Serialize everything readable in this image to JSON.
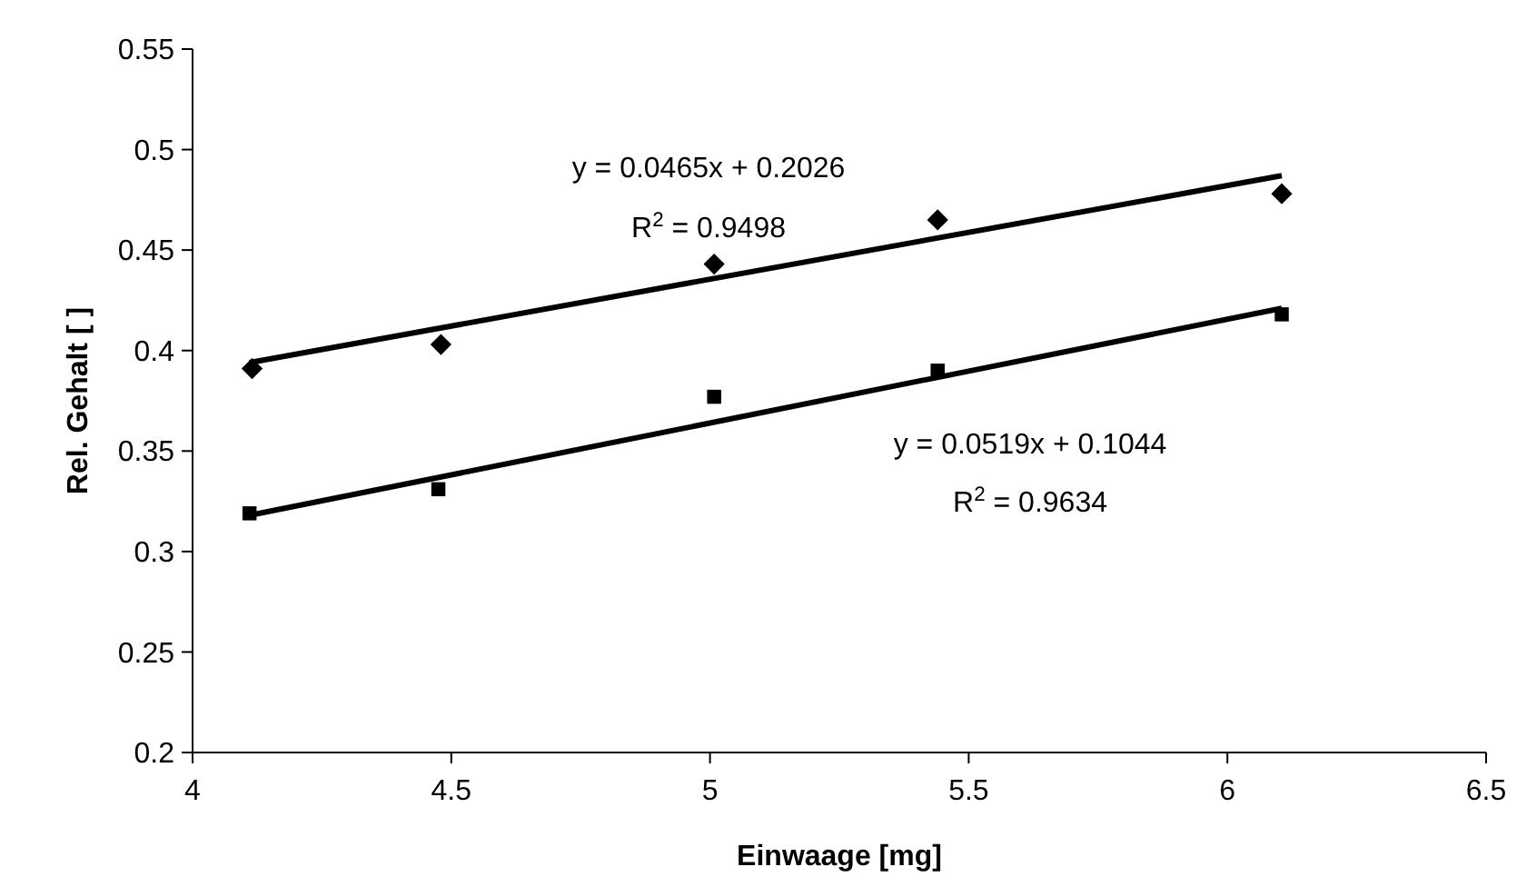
{
  "chart_data": {
    "type": "scatter",
    "xlabel": "Einwaage [mg]",
    "ylabel": "Rel. Gehalt [ ]",
    "xlim": [
      4,
      6.5
    ],
    "xticks": [
      4,
      4.5,
      5,
      5.5,
      6,
      6.5
    ],
    "ylim": [
      0.2,
      0.55
    ],
    "yticks": [
      0.2,
      0.25,
      0.3,
      0.35,
      0.4,
      0.45,
      0.5,
      0.55
    ],
    "grid": false,
    "series": [
      {
        "type": "scatter",
        "color": "#000000",
        "marker": "diamond",
        "x": [
          4.115,
          4.48,
          5.008,
          5.44,
          6.105
        ],
        "values": [
          0.391,
          0.403,
          0.443,
          0.465,
          0.478
        ]
      },
      {
        "type": "scatter",
        "color": "#000000",
        "marker": "square",
        "x": [
          4.11,
          4.475,
          5.008,
          5.44,
          6.105
        ],
        "values": [
          0.319,
          0.331,
          0.377,
          0.39,
          0.418
        ]
      },
      {
        "type": "line",
        "color": "#000000",
        "marker": "none",
        "x": [
          4.11,
          6.105
        ],
        "values": [
          0.394,
          0.487
        ]
      },
      {
        "type": "line",
        "color": "#000000",
        "marker": "none",
        "x": [
          4.11,
          6.105
        ],
        "values": [
          0.318,
          0.421
        ]
      }
    ],
    "annotations": [
      "y = 0.0465x + 0.2026",
      "R$^{2}$ = 0.9498",
      "y = 0.0519x + 0.1044",
      "R$^{2}$ = 0.9634"
    ]
  }
}
